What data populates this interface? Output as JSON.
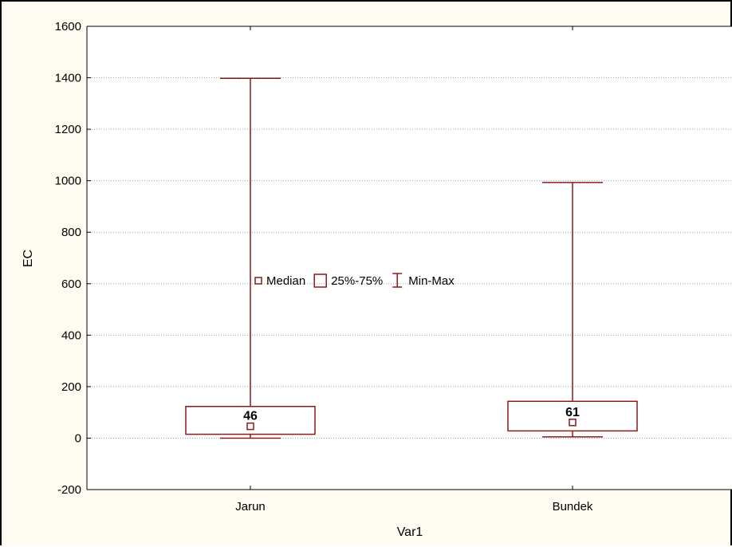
{
  "chart_data": {
    "type": "boxplot",
    "categories": [
      "Jarun",
      "Bundek"
    ],
    "boxes": [
      {
        "category": "Jarun",
        "min": 0,
        "q1": 15,
        "median": 46,
        "q3": 123,
        "max": 1398,
        "median_label": "46"
      },
      {
        "category": "Bundek",
        "min": 5,
        "q1": 28,
        "median": 61,
        "q3": 143,
        "max": 993,
        "median_label": "61"
      }
    ],
    "xlabel": "Var1",
    "ylabel": "EC",
    "ylim": [
      -200,
      1600
    ],
    "yticks": [
      -200,
      0,
      200,
      400,
      600,
      800,
      1000,
      1200,
      1400,
      1600
    ],
    "grid": true,
    "legend": {
      "placement": "center",
      "items": [
        {
          "symbol": "median",
          "label": "Median"
        },
        {
          "symbol": "box",
          "label": "25%-75%"
        },
        {
          "symbol": "whisker",
          "label": "Min-Max"
        }
      ]
    },
    "colors": {
      "series": "#8b1a1a",
      "grid": "#a0a0a0",
      "axis": "#000000",
      "background": "#fffbf0",
      "plot_background": "#ffffff"
    }
  }
}
